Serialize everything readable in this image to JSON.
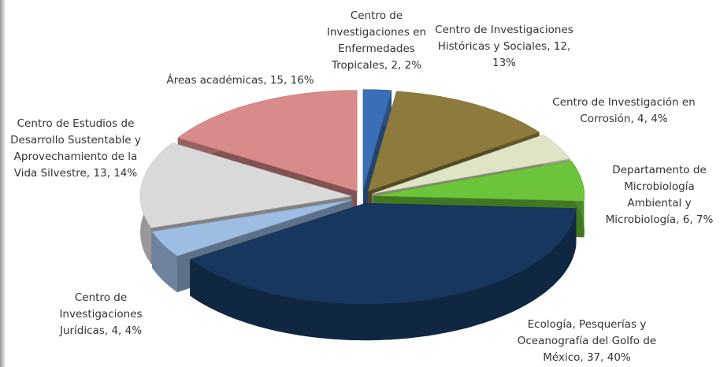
{
  "chart_data": {
    "type": "pie3d",
    "categories": [
      "Centro de Investigaciones en Enfermedades Tropicales",
      "Centro de Investigaciones Históricas y Sociales",
      "Centro de Investigación en Corrosión",
      "Departamento de Microbiología Ambiental y Microbiología",
      "Ecología, Pesquerías y Oceanografía del Golfo de México",
      "Centro de Investigaciones Jurídicas",
      "Centro de Estudios de Desarrollo Sustentable y Aprovechamiento de la Vida Silvestre",
      "Áreas académicas"
    ],
    "values": [
      2,
      12,
      4,
      6,
      37,
      4,
      13,
      15
    ],
    "value_labels": [
      "Centro de Investigaciones en Enfermedades Tropicales, 2, 2%",
      "Centro de Investigaciones Históricas y Sociales, 12, 13%",
      "Centro de Investigación en Corrosión, 4, 4%",
      "Departamento de Microbiología Ambiental y Microbiología, 6, 7%",
      "Ecología, Pesquerías y Oceanografía del Golfo de México, 37, 40%",
      "Centro de Investigaciones Jurídicas, 4, 4%",
      "Centro de Estudios de Desarrollo Sustentable y Aprovechamiento de la Vida Silvestre, 13, 14%",
      "Áreas académicas, 15, 16%"
    ],
    "colors": [
      "#3a6fb5",
      "#8c7b3c",
      "#dfe5c4",
      "#6cc43a",
      "#17375e",
      "#9dbde2",
      "#d9d9d9",
      "#d98a8a"
    ]
  }
}
